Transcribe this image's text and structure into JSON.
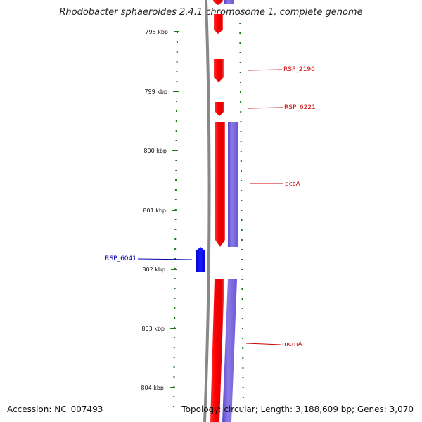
{
  "title": "Rhodobacter sphaeroides 2.4.1 chromosome 1, complete genome",
  "accession": "Accession: NC_007493",
  "topology": "Topology: circular; Length: 3,188,609 bp; Genes: 3,070",
  "colors": {
    "forward": "#ff0000",
    "reverse": "#0000ff",
    "cds_track": "#7a68d9",
    "ticks": "#1a7a1a",
    "backbone": "#888888"
  },
  "ruler": [
    "798 kbp",
    "799 kbp",
    "800 kbp",
    "801 kbp",
    "802 kbp",
    "803 kbp",
    "804 kbp"
  ],
  "labels": {
    "rsp2190": "RSP_2190",
    "rsp6221": "RSP_6221",
    "pcca": "pccA",
    "rsp6041": "RSP_6041",
    "mcma": "mcmA"
  }
}
